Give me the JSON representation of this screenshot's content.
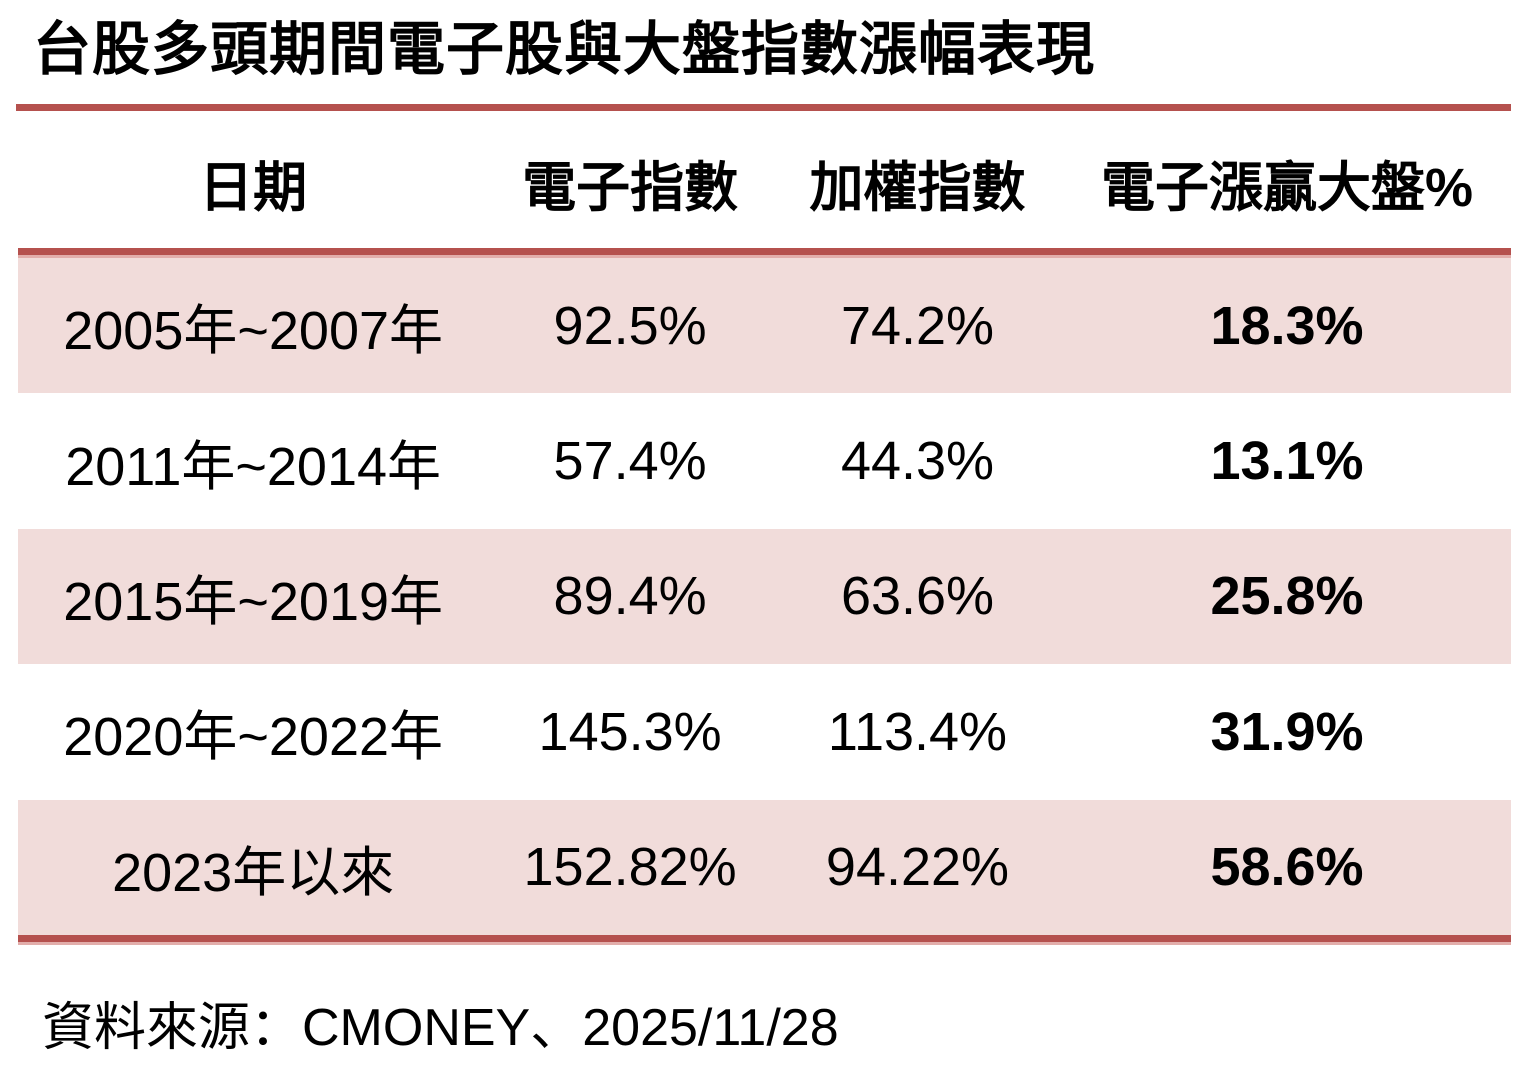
{
  "title": "台股多頭期間電子股與大盤指數漲幅表現",
  "chart_data": {
    "type": "table",
    "title": "台股多頭期間電子股與大盤指數漲幅表現",
    "columns": [
      "日期",
      "電子指數",
      "加權指數",
      "電子漲贏大盤%"
    ],
    "rows": [
      [
        "2005年~2007年",
        "92.5%",
        "74.2%",
        "18.3%"
      ],
      [
        "2011年~2014年",
        "57.4%",
        "44.3%",
        "13.1%"
      ],
      [
        "2015年~2019年",
        "89.4%",
        "63.6%",
        "25.8%"
      ],
      [
        "2020年~2022年",
        "145.3%",
        "113.4%",
        "31.9%"
      ],
      [
        "2023年以來",
        "152.82%",
        "94.22%",
        "58.6%"
      ]
    ],
    "source": "資料來源：CMONEY、2025/11/28",
    "layout_hints": {
      "banding": "rows 1,3,5 pink band; rows 2,4 white",
      "bold_column": "電子漲贏大盤%",
      "rules": "red horizontal rule under title, above first data row and below last data row"
    }
  },
  "footer": {
    "source": "資料來源：CMONEY、2025/11/28"
  },
  "colors": {
    "accent_red": "#b5514e",
    "accent_red_light": "#e2aeab",
    "band_pink": "#f1dcda",
    "text": "#000000",
    "background": "#ffffff"
  }
}
